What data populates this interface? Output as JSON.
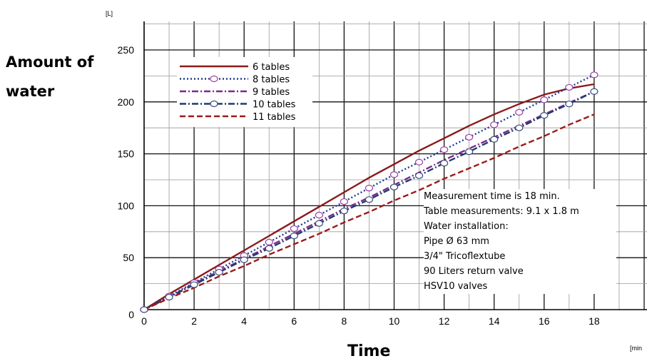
{
  "chart_data": {
    "type": "line",
    "ylabel_line1": "Amount of",
    "ylabel_line2": "water",
    "xlabel": "Time",
    "y_unit": "[L]",
    "x_unit": "[min",
    "xlim": [
      0,
      20
    ],
    "ylim": [
      0,
      270
    ],
    "xticks": [
      0,
      2,
      4,
      6,
      8,
      10,
      12,
      14,
      16,
      18
    ],
    "yticks": [
      0,
      50,
      100,
      150,
      200,
      250
    ],
    "grid": true,
    "legend_position": "top-left",
    "series": [
      {
        "name": "6 tables",
        "color": "#8b1a1a",
        "style": "solid",
        "marker": "none",
        "x": [
          0,
          1,
          2,
          3,
          4,
          5,
          6,
          7,
          8,
          9,
          10,
          11,
          12,
          13,
          14,
          15,
          16,
          17,
          18
        ],
        "y": [
          0,
          15,
          29,
          43,
          57,
          71,
          85,
          99,
          113,
          127,
          140,
          153,
          165,
          177,
          188,
          198,
          207,
          213,
          217
        ]
      },
      {
        "name": "8 tables",
        "color": "#1f3d8f",
        "style": "dotted",
        "marker": "circle",
        "marker_color": "#9b3ea8",
        "x": [
          0,
          1,
          2,
          3,
          4,
          5,
          6,
          7,
          8,
          9,
          10,
          11,
          12,
          13,
          14,
          15,
          16,
          17,
          18
        ],
        "y": [
          0,
          13,
          26,
          39,
          52,
          65,
          78,
          91,
          104,
          117,
          130,
          142,
          154,
          166,
          178,
          190,
          202,
          214,
          226
        ]
      },
      {
        "name": "9 tables",
        "color": "#7a2a8c",
        "style": "dashdot",
        "marker": "none",
        "x": [
          0,
          1,
          2,
          3,
          4,
          5,
          6,
          7,
          8,
          9,
          10,
          11,
          12,
          13,
          14,
          15,
          16,
          17,
          18
        ],
        "y": [
          0,
          12,
          25,
          37,
          49,
          61,
          73,
          85,
          97,
          108,
          120,
          132,
          144,
          155,
          166,
          177,
          188,
          199,
          210
        ]
      },
      {
        "name": "10 tables",
        "color": "#1f3d6f",
        "style": "dashdot",
        "marker": "circle",
        "marker_color": "#3a4a7a",
        "x": [
          0,
          1,
          2,
          3,
          4,
          5,
          6,
          7,
          8,
          9,
          10,
          11,
          12,
          13,
          14,
          15,
          16,
          17,
          18
        ],
        "y": [
          0,
          12,
          24,
          36,
          48,
          59,
          71,
          83,
          95,
          106,
          118,
          129,
          141,
          152,
          164,
          175,
          187,
          198,
          210
        ]
      },
      {
        "name": "11 tables",
        "color": "#9b1c1c",
        "style": "dashed",
        "marker": "none",
        "x": [
          0,
          1,
          2,
          3,
          4,
          5,
          6,
          7,
          8,
          9,
          10,
          11,
          12,
          13,
          14,
          15,
          16,
          17,
          18
        ],
        "y": [
          0,
          11,
          21,
          32,
          42,
          53,
          63,
          73,
          84,
          94,
          105,
          115,
          126,
          136,
          146,
          157,
          167,
          178,
          188
        ]
      }
    ],
    "annotations": [
      "Measurement time is 18 min.",
      "Table measurements: 9.1 x 1.8 m",
      "Water installation:",
      "Pipe Ø 63 mm",
      "3/4\" Tricoflextube",
      "90 Liters return valve",
      "HSV10 valves"
    ]
  }
}
